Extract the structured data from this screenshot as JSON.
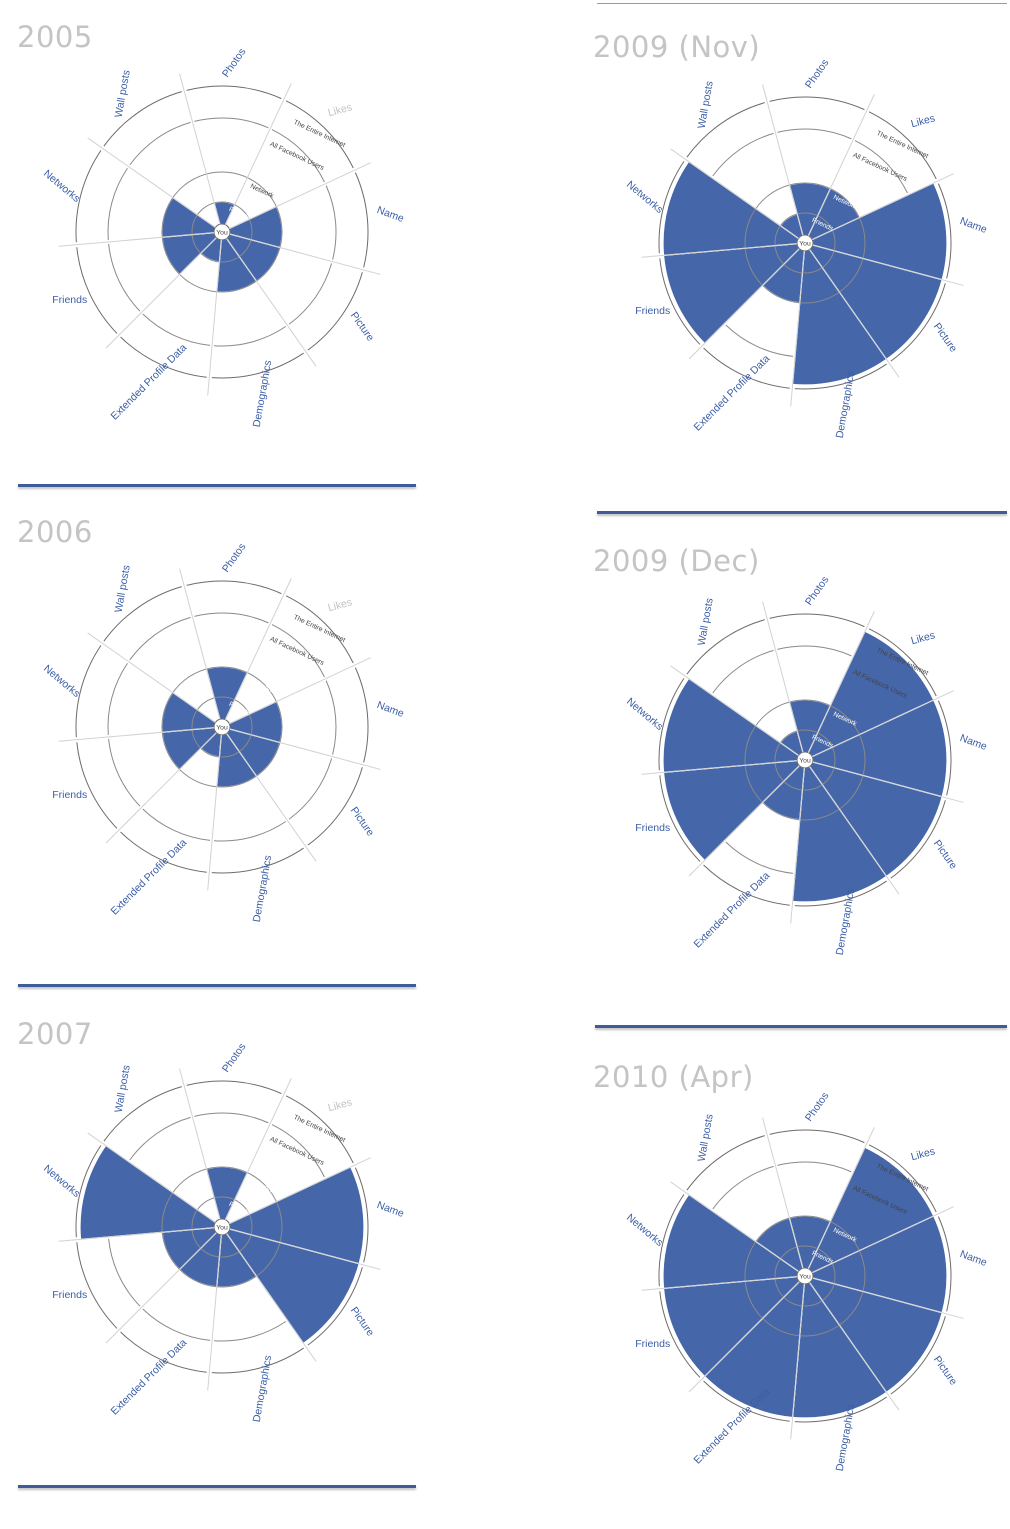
{
  "chart_data": {
    "type": "polar-area",
    "title": "",
    "sectors": [
      "Wall posts",
      "Photos",
      "Likes",
      "Name",
      "Picture",
      "Demographics",
      "Extended Profile Data",
      "Friends",
      "Networks"
    ],
    "levels": [
      "You",
      "Friends",
      "Network",
      "All Facebook Users",
      "The Entire Internet"
    ],
    "level_scale": {
      "You": 0,
      "Friends": 1,
      "Network": 2,
      "All Facebook Users": 3,
      "The Entire Internet": 4
    },
    "charts": [
      {
        "year": "2005",
        "series": [
          {
            "values": {
              "Wall posts": 0,
              "Photos": 1,
              "Likes": 0,
              "Name": 2,
              "Picture": 2,
              "Demographics": 2,
              "Extended Profile Data": 1,
              "Friends": 2,
              "Networks": 2
            }
          }
        ]
      },
      {
        "year": "2006",
        "series": [
          {
            "values": {
              "Wall posts": 0,
              "Photos": 2,
              "Likes": 0,
              "Name": 2,
              "Picture": 2,
              "Demographics": 2,
              "Extended Profile Data": 1,
              "Friends": 2,
              "Networks": 2
            }
          }
        ]
      },
      {
        "year": "2007",
        "series": [
          {
            "values": {
              "Wall posts": 0,
              "Photos": 2,
              "Likes": 0,
              "Name": 4,
              "Picture": 4,
              "Demographics": 2,
              "Extended Profile Data": 2,
              "Friends": 2,
              "Networks": 4
            }
          }
        ]
      },
      {
        "year": "2009 (Nov)",
        "series": [
          {
            "values": {
              "Wall posts": 1,
              "Photos": 2,
              "Likes": 2,
              "Name": 4,
              "Picture": 4,
              "Demographics": 4,
              "Extended Profile Data": 2,
              "Friends": 4,
              "Networks": 4
            }
          }
        ]
      },
      {
        "year": "2009 (Dec)",
        "series": [
          {
            "values": {
              "Wall posts": 1,
              "Photos": 2,
              "Likes": 4,
              "Name": 4,
              "Picture": 4,
              "Demographics": 4,
              "Extended Profile Data": 2,
              "Friends": 4,
              "Networks": 4
            }
          }
        ]
      },
      {
        "year": "2010 (Apr)",
        "series": [
          {
            "values": {
              "Wall posts": 2,
              "Photos": 2,
              "Likes": 4,
              "Name": 4,
              "Picture": 4,
              "Demographics": 4,
              "Extended Profile Data": 4,
              "Friends": 4,
              "Networks": 4
            }
          }
        ]
      }
    ],
    "colors": {
      "fill": "#4566a8",
      "ring": "#8a8a8a",
      "year": "#c4c4c4",
      "label": "#3b5ea6",
      "inactive_label": "#c2c2c2"
    }
  }
}
